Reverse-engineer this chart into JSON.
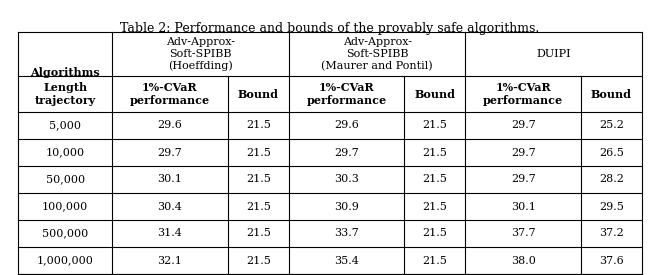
{
  "title": "Table 2: Performance and bounds of the provably safe algorithms.",
  "rows": [
    [
      "5,000",
      "29.6",
      "21.5",
      "29.6",
      "21.5",
      "29.7",
      "25.2"
    ],
    [
      "10,000",
      "29.7",
      "21.5",
      "29.7",
      "21.5",
      "29.7",
      "26.5"
    ],
    [
      "50,000",
      "30.1",
      "21.5",
      "30.3",
      "21.5",
      "29.7",
      "28.2"
    ],
    [
      "100,000",
      "30.4",
      "21.5",
      "30.9",
      "21.5",
      "30.1",
      "29.5"
    ],
    [
      "500,000",
      "31.4",
      "21.5",
      "33.7",
      "21.5",
      "37.7",
      "37.2"
    ],
    [
      "1,000,000",
      "32.1",
      "21.5",
      "35.4",
      "21.5",
      "38.0",
      "37.6"
    ]
  ],
  "bg_color": "#ffffff",
  "line_color": "#000000",
  "title_font_size": 9.0,
  "header_font_size": 8.0,
  "data_font_size": 8.0
}
